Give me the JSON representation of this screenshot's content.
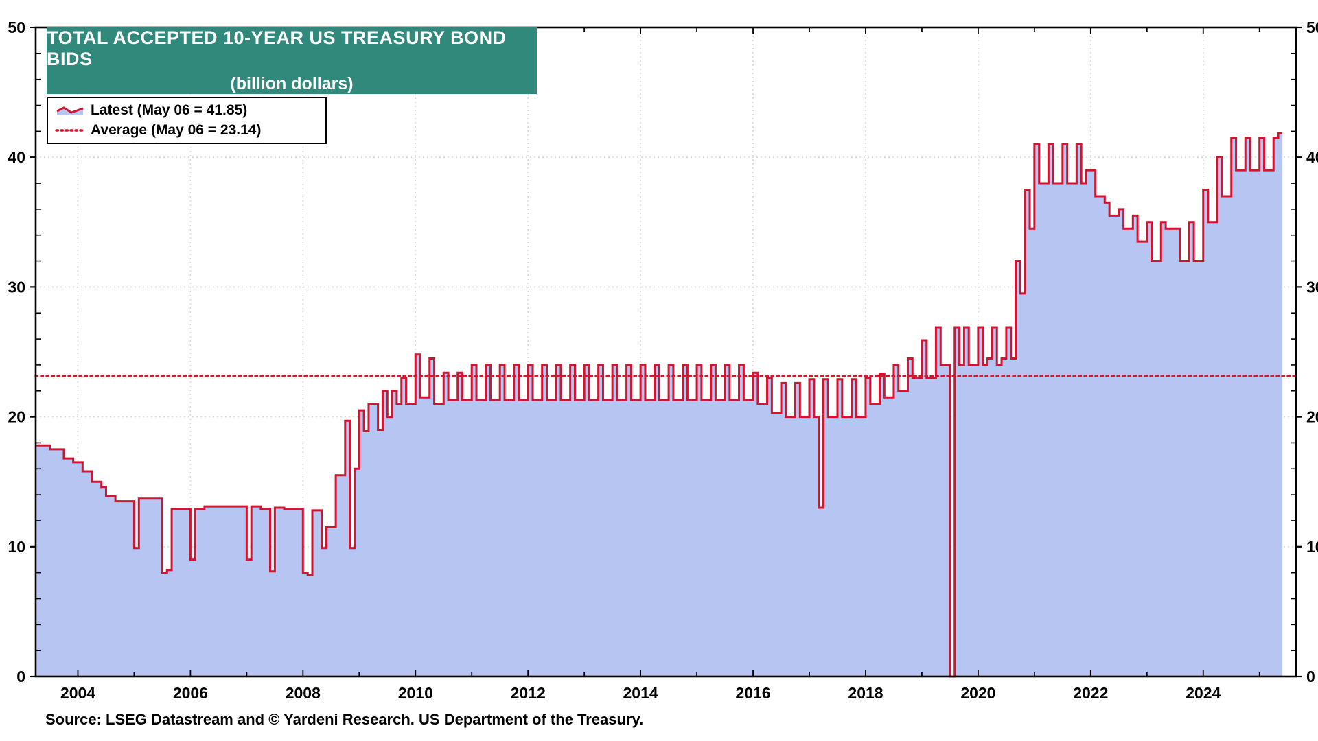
{
  "title": {
    "line1": "TOTAL ACCEPTED 10-YEAR US TREASURY BOND BIDS",
    "line2": "(billion dollars)"
  },
  "legend": {
    "latest_label": "Latest (May 06 = 41.85)",
    "average_label": "Average (May 06 = 23.14)"
  },
  "source": "Source: LSEG Datastream and © Yardeni Research. US Department of the Treasury.",
  "colors": {
    "title_bg": "#30897b",
    "line": "#d4142e",
    "average": "#e0102a",
    "fill": "#b6c5f2",
    "grid": "#d9d9d9",
    "axis": "#000000"
  },
  "chart_data": {
    "type": "area",
    "title": "TOTAL ACCEPTED 10-YEAR US TREASURY BOND BIDS (billion dollars)",
    "xlabel": "",
    "ylabel": "billion dollars",
    "xlim": [
      2003.25,
      2025.65
    ],
    "ylim": [
      0,
      50
    ],
    "x_ticks": [
      2004,
      2006,
      2008,
      2010,
      2012,
      2014,
      2016,
      2018,
      2020,
      2022,
      2024
    ],
    "y_ticks": [
      0,
      10,
      20,
      30,
      40,
      50
    ],
    "grid": true,
    "legend_position": "top-left",
    "average": 23.14,
    "latest": 41.85,
    "latest_date": "May 06",
    "series": [
      {
        "name": "Latest",
        "start": 2003.25,
        "step": "monthly",
        "values": [
          17.8,
          17.8,
          17.8,
          17.5,
          17.5,
          17.5,
          16.8,
          16.8,
          16.5,
          16.5,
          15.8,
          15.8,
          15.0,
          15.0,
          14.6,
          13.9,
          13.9,
          13.5,
          13.5,
          13.5,
          13.5,
          9.9,
          13.7,
          13.7,
          13.7,
          13.7,
          13.7,
          8.0,
          8.2,
          12.9,
          12.9,
          12.9,
          12.9,
          9.0,
          12.9,
          12.9,
          13.1,
          13.1,
          13.1,
          13.1,
          13.1,
          13.1,
          13.1,
          13.1,
          13.1,
          9.0,
          13.1,
          13.1,
          12.9,
          12.9,
          8.1,
          13.0,
          13.0,
          12.9,
          12.9,
          12.9,
          12.9,
          8.0,
          7.8,
          12.8,
          12.8,
          9.9,
          11.5,
          11.5,
          15.5,
          15.5,
          19.7,
          9.9,
          16.0,
          20.5,
          18.9,
          21.0,
          21.0,
          19.0,
          22.0,
          20.0,
          22.0,
          21.0,
          23.0,
          21.0,
          21.0,
          24.8,
          21.5,
          21.5,
          24.5,
          21.0,
          21.0,
          23.4,
          21.3,
          21.3,
          23.4,
          21.3,
          21.3,
          24.0,
          21.3,
          21.3,
          24.0,
          21.3,
          21.3,
          24.0,
          21.3,
          21.3,
          24.0,
          21.3,
          21.3,
          24.0,
          21.3,
          21.3,
          24.0,
          21.3,
          21.3,
          24.0,
          21.3,
          21.3,
          24.0,
          21.3,
          21.3,
          24.0,
          21.3,
          21.3,
          24.0,
          21.3,
          21.3,
          24.0,
          21.3,
          21.3,
          24.0,
          21.3,
          21.3,
          24.0,
          21.3,
          21.3,
          24.0,
          21.3,
          21.3,
          24.0,
          21.3,
          21.3,
          24.0,
          21.3,
          21.3,
          24.0,
          21.3,
          21.3,
          24.0,
          21.3,
          21.3,
          24.0,
          21.3,
          21.3,
          24.0,
          21.3,
          21.3,
          23.4,
          21.0,
          21.0,
          23.0,
          20.3,
          20.3,
          22.6,
          20.0,
          20.0,
          22.6,
          20.0,
          20.0,
          22.9,
          20.0,
          13.0,
          22.9,
          20.0,
          20.0,
          22.9,
          20.0,
          20.0,
          22.9,
          20.0,
          20.0,
          23.0,
          21.0,
          21.0,
          23.3,
          21.5,
          21.5,
          24.0,
          22.0,
          22.0,
          24.5,
          23.0,
          23.0,
          25.9,
          23.0,
          23.0,
          26.9,
          24.0,
          24.0,
          0.0,
          26.9,
          24.0,
          26.9,
          24.0,
          24.0,
          26.9,
          24.0,
          24.5,
          26.9,
          24.0,
          24.5,
          26.9,
          24.5,
          32.0,
          29.5,
          37.5,
          34.5,
          41.0,
          38.0,
          38.0,
          41.0,
          38.0,
          38.0,
          41.0,
          38.0,
          38.0,
          41.0,
          38.0,
          39.0,
          39.0,
          37.0,
          37.0,
          36.5,
          35.5,
          35.5,
          36.0,
          34.5,
          34.5,
          35.5,
          33.5,
          33.5,
          35.0,
          32.0,
          32.0,
          35.0,
          34.5,
          34.5,
          34.5,
          32.0,
          32.0,
          35.0,
          32.0,
          32.0,
          37.5,
          35.0,
          35.0,
          40.0,
          37.0,
          37.0,
          41.5,
          39.0,
          39.0,
          41.5,
          39.0,
          39.0,
          41.5,
          39.0,
          39.0,
          41.5,
          41.85
        ]
      },
      {
        "name": "Average",
        "constant": 23.14
      }
    ]
  }
}
